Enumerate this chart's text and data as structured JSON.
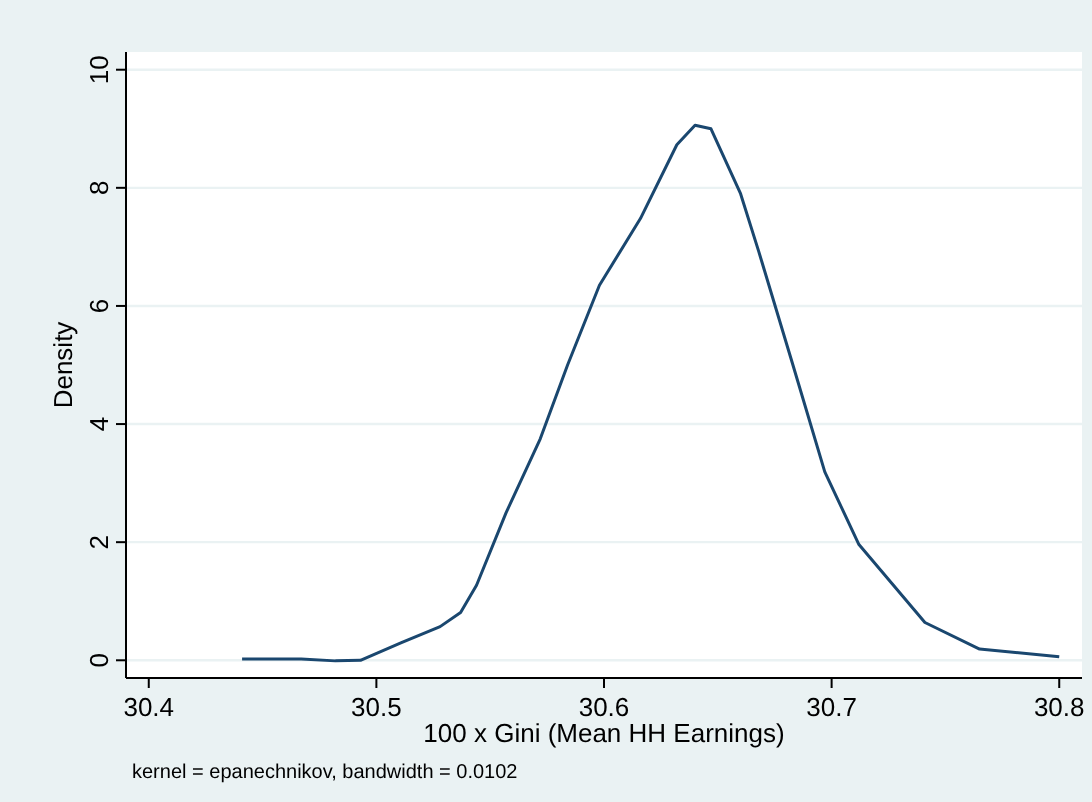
{
  "chart_data": {
    "type": "line",
    "xlabel": "100 x Gini (Mean HH Earnings)",
    "ylabel": "Density",
    "annotations": [
      "kernel = epanechnikov, bandwidth = 0.0102"
    ],
    "x": [
      30.441,
      30.467,
      30.482,
      30.493,
      30.511,
      30.528,
      30.537,
      30.544,
      30.557,
      30.572,
      30.584,
      30.598,
      30.616,
      30.632,
      30.64,
      30.647,
      30.66,
      30.668,
      30.683,
      30.697,
      30.712,
      30.741,
      30.765,
      30.8
    ],
    "series": [
      {
        "color": "#1a476f",
        "values": [
          0.02,
          0.02,
          -0.01,
          0.0,
          0.3,
          0.57,
          0.81,
          1.27,
          2.5,
          3.75,
          5.0,
          6.35,
          7.48,
          8.73,
          9.06,
          9.0,
          7.9,
          6.92,
          5.0,
          3.19,
          1.96,
          0.64,
          0.19,
          0.06
        ]
      }
    ],
    "xlim": [
      30.39,
      30.81
    ],
    "ylim": [
      -0.3,
      10.3
    ],
    "xticks": [
      30.4,
      30.5,
      30.6,
      30.7,
      30.8
    ],
    "yticks": [
      0,
      2,
      4,
      6,
      8,
      10
    ],
    "grid": "y",
    "line_style": "solid",
    "marker": "none"
  }
}
